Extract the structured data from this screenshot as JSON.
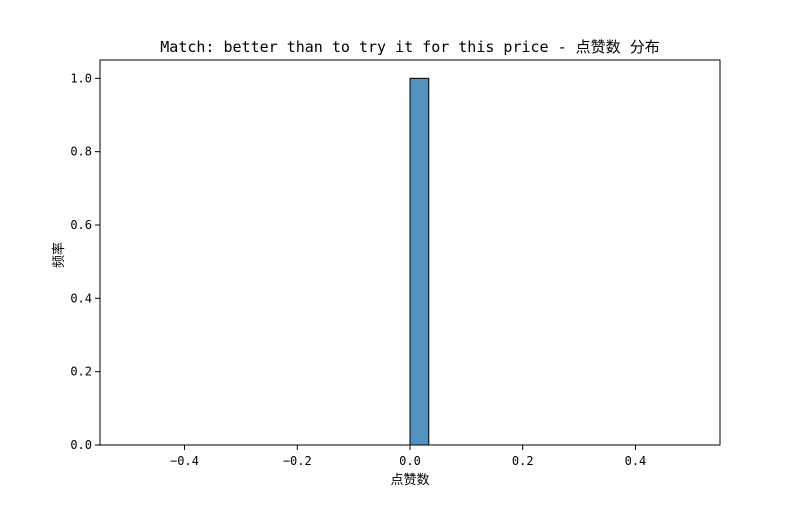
{
  "chart_data": {
    "type": "bar",
    "title": "Match: better than to try it for this price - 点赞数 分布",
    "xlabel": "点赞数",
    "ylabel": "频率",
    "xlim": [
      -0.55,
      0.55
    ],
    "ylim": [
      0,
      1.05
    ],
    "xticks": [
      -0.4,
      -0.2,
      0.0,
      0.2,
      0.4
    ],
    "xtick_labels": [
      "−0.4",
      "−0.2",
      "0.0",
      "0.2",
      "0.4"
    ],
    "yticks": [
      0.0,
      0.2,
      0.4,
      0.6,
      0.8,
      1.0
    ],
    "ytick_labels": [
      "0.0",
      "0.2",
      "0.4",
      "0.6",
      "0.8",
      "1.0"
    ],
    "bins": [
      {
        "x0": -0.5,
        "x1": 0.0,
        "value": 0
      },
      {
        "x0": 0.0,
        "x1": 0.0333,
        "value": 1.0
      },
      {
        "x0": 0.0333,
        "x1": 0.5,
        "value": 0
      }
    ],
    "bar_color": "#5192c1",
    "edge_color": "#000000",
    "grid": false,
    "legend": "none"
  }
}
